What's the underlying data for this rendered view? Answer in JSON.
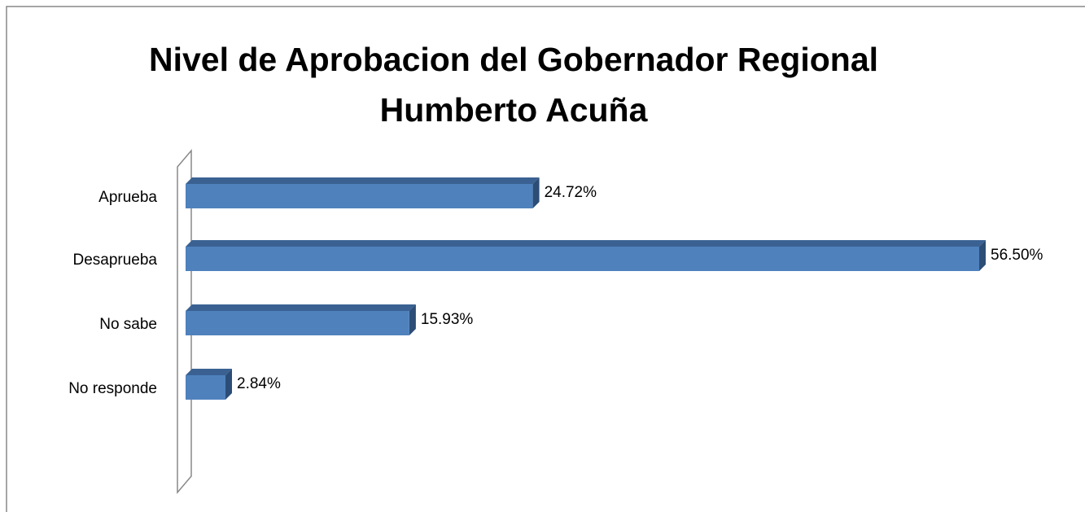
{
  "chart_data": {
    "type": "bar",
    "orientation": "horizontal",
    "title": "Nivel de Aprobacion del Gobernador Regional Humberto Acuña",
    "categories": [
      "Aprueba",
      "Desaprueba",
      "No sabe",
      "No responde"
    ],
    "values": [
      24.72,
      56.5,
      15.93,
      2.84
    ],
    "value_labels": [
      "24.72%",
      "56.50%",
      "15.93%",
      "2.84%"
    ],
    "color": "#4f81bd"
  }
}
